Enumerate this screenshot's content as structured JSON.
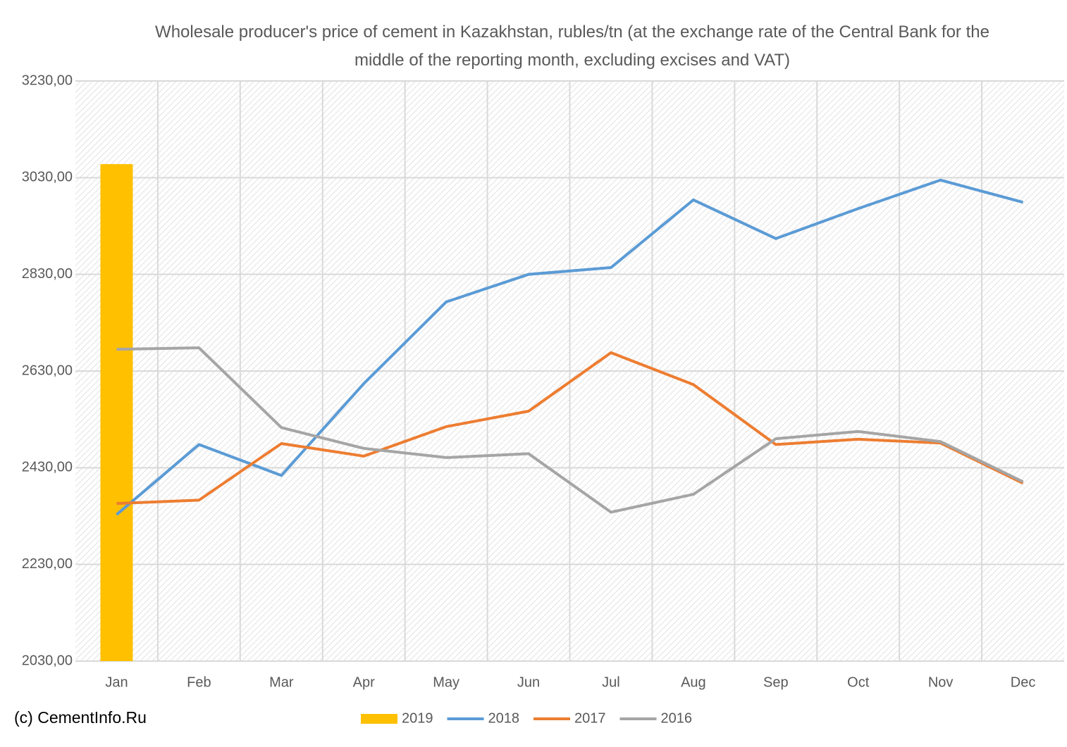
{
  "chart_data": {
    "type": "line",
    "title": "Wholesale producer's price of cement in Kazakhstan, rubles/tn (at the exchange rate of the Central Bank for the middle of the reporting month, excluding excises and VAT)",
    "categories": [
      "Jan",
      "Feb",
      "Mar",
      "Apr",
      "May",
      "Jun",
      "Jul",
      "Aug",
      "Sep",
      "Oct",
      "Nov",
      "Dec"
    ],
    "series": [
      {
        "name": "2019",
        "type": "bar",
        "color": "#ffc000",
        "values": [
          3058,
          null,
          null,
          null,
          null,
          null,
          null,
          null,
          null,
          null,
          null,
          null
        ]
      },
      {
        "name": "2018",
        "type": "line",
        "color": "#5b9bd5",
        "values": [
          2333,
          2478,
          2414,
          2604,
          2773,
          2830,
          2844,
          2984,
          2904,
          2966,
          3025,
          2979
        ]
      },
      {
        "name": "2017",
        "type": "line",
        "color": "#ed7d31",
        "values": [
          2356,
          2363,
          2480,
          2454,
          2515,
          2547,
          2668,
          2602,
          2478,
          2489,
          2481,
          2398
        ]
      },
      {
        "name": "2016",
        "type": "line",
        "color": "#a5a5a5",
        "values": [
          2675,
          2678,
          2513,
          2470,
          2451,
          2459,
          2338,
          2375,
          2490,
          2505,
          2484,
          2401
        ]
      }
    ],
    "ylim": [
      2030,
      3230
    ],
    "yticks": [
      {
        "value": 2030,
        "label": "2030,00"
      },
      {
        "value": 2230,
        "label": "2230,00"
      },
      {
        "value": 2430,
        "label": "2430,00"
      },
      {
        "value": 2630,
        "label": "2630,00"
      },
      {
        "value": 2830,
        "label": "2830,00"
      },
      {
        "value": 3030,
        "label": "3030,00"
      },
      {
        "value": 3230,
        "label": "3230,00"
      }
    ],
    "grid": true,
    "legend": "bottom",
    "footer": "(c) CementInfo.Ru"
  }
}
